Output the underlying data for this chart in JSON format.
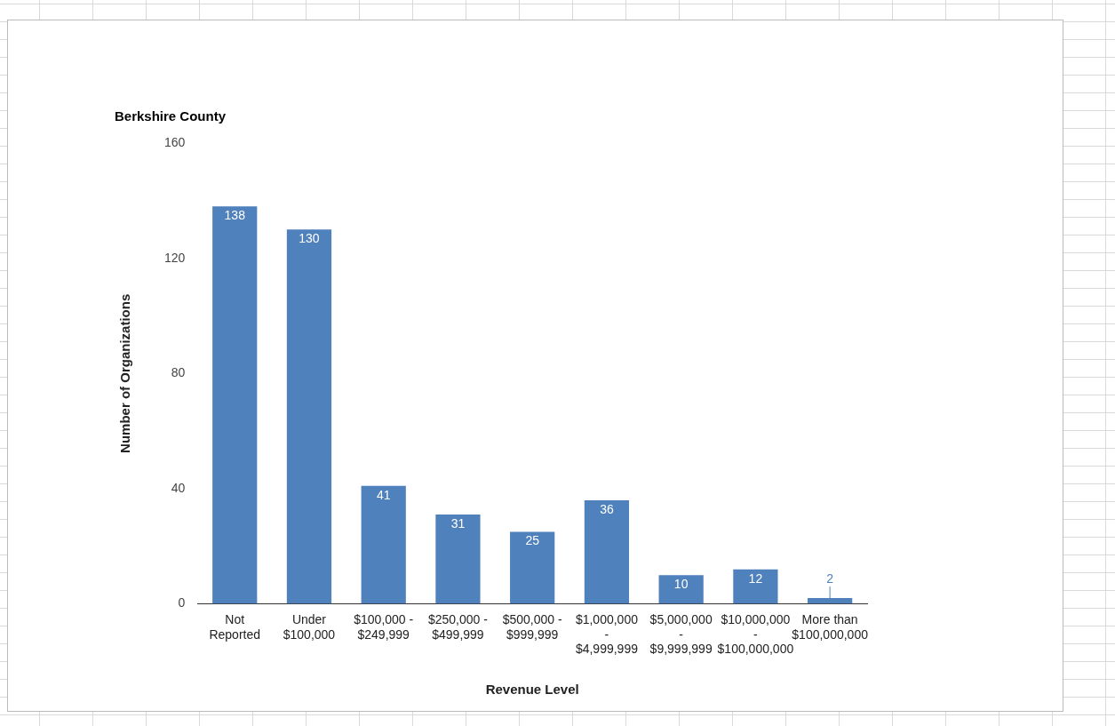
{
  "chart_data": {
    "type": "bar",
    "title": "Berkshire County",
    "xlabel": "Revenue Level",
    "ylabel": "Number of Organizations",
    "categories": [
      "Not Reported",
      "Under $100,000",
      "$100,000 - $249,999",
      "$250,000 - $499,999",
      "$500,000 - $999,999",
      "$1,000,000 - $4,999,999",
      "$5,000,000 - $9,999,999",
      "$10,000,000 - $100,000,000",
      "More than $100,000,000"
    ],
    "values": [
      138,
      130,
      41,
      31,
      25,
      36,
      10,
      12,
      2
    ],
    "color": "#4f81bd",
    "ylim": [
      0,
      160
    ],
    "yticks": [
      0,
      40,
      80,
      120,
      160
    ],
    "grid": false,
    "legend": false,
    "data_labels": true
  }
}
